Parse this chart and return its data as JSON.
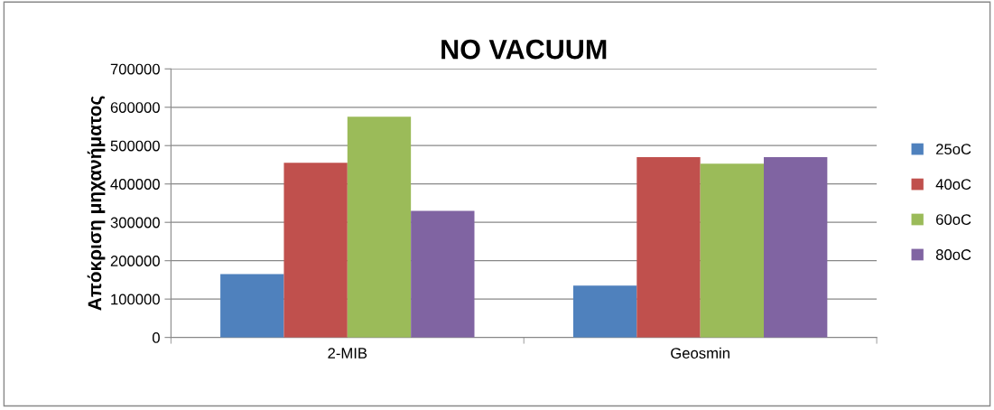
{
  "chart_data": {
    "type": "bar",
    "title": "NO VACUUM",
    "ylabel": "Απόκριση μηχανήματος",
    "categories": [
      "2-MIB",
      "Geosmin"
    ],
    "series": [
      {
        "name": "25oC",
        "color": "#4f81bd",
        "values": [
          165000,
          135000
        ]
      },
      {
        "name": "40oC",
        "color": "#c0504d",
        "values": [
          455000,
          470000
        ]
      },
      {
        "name": "60oC",
        "color": "#9bbb59",
        "values": [
          575000,
          453000
        ]
      },
      {
        "name": "80oC",
        "color": "#8064a2",
        "values": [
          330000,
          470000
        ]
      }
    ],
    "ylim": [
      0,
      700000
    ],
    "yticks": [
      0,
      100000,
      200000,
      300000,
      400000,
      500000,
      600000,
      700000
    ],
    "grid": "y",
    "legend": "right"
  }
}
